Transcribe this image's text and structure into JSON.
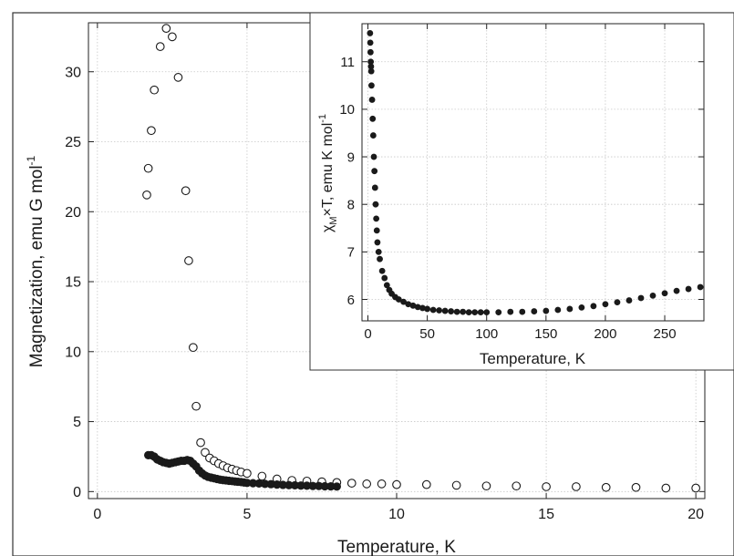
{
  "chart_data": [
    {
      "type": "scatter",
      "xlabel": "Temperature, K",
      "ylabel": "Magnetization, emu G mol",
      "ylabel_superscript": "-1",
      "xlim": [
        -0.3,
        20.3
      ],
      "ylim": [
        -0.5,
        33.5
      ],
      "xticks": [
        0,
        5,
        10,
        15,
        20
      ],
      "yticks": [
        0,
        5,
        10,
        15,
        20,
        25,
        30
      ],
      "grid": true,
      "legend": "none",
      "series": [
        {
          "marker": "open-circle",
          "points": [
            [
              1.65,
              21.2
            ],
            [
              1.7,
              23.1
            ],
            [
              1.8,
              25.8
            ],
            [
              1.9,
              28.7
            ],
            [
              2.1,
              31.8
            ],
            [
              2.3,
              33.1
            ],
            [
              2.5,
              32.5
            ],
            [
              2.7,
              29.6
            ],
            [
              2.95,
              21.5
            ],
            [
              3.05,
              16.5
            ],
            [
              3.2,
              10.3
            ],
            [
              3.3,
              6.1
            ],
            [
              3.45,
              3.5
            ],
            [
              3.6,
              2.8
            ],
            [
              3.75,
              2.4
            ],
            [
              3.9,
              2.2
            ],
            [
              4.05,
              2.0
            ],
            [
              4.2,
              1.85
            ],
            [
              4.35,
              1.7
            ],
            [
              4.5,
              1.6
            ],
            [
              4.65,
              1.5
            ],
            [
              4.8,
              1.4
            ],
            [
              5.0,
              1.3
            ],
            [
              5.5,
              1.1
            ],
            [
              6.0,
              0.9
            ],
            [
              6.5,
              0.8
            ],
            [
              7.0,
              0.75
            ],
            [
              7.5,
              0.7
            ],
            [
              8.0,
              0.65
            ],
            [
              8.5,
              0.6
            ],
            [
              9.0,
              0.55
            ],
            [
              9.5,
              0.55
            ],
            [
              10.0,
              0.5
            ],
            [
              11.0,
              0.5
            ],
            [
              12.0,
              0.45
            ],
            [
              13.0,
              0.4
            ],
            [
              14.0,
              0.4
            ],
            [
              15.0,
              0.35
            ],
            [
              16.0,
              0.35
            ],
            [
              17.0,
              0.3
            ],
            [
              18.0,
              0.3
            ],
            [
              19.0,
              0.25
            ],
            [
              20.0,
              0.25
            ]
          ]
        },
        {
          "marker": "filled-circle",
          "points": [
            [
              1.7,
              2.6
            ],
            [
              1.8,
              2.6
            ],
            [
              1.9,
              2.5
            ],
            [
              2.0,
              2.3
            ],
            [
              2.1,
              2.2
            ],
            [
              2.2,
              2.1
            ],
            [
              2.3,
              2.05
            ],
            [
              2.4,
              2.0
            ],
            [
              2.5,
              2.05
            ],
            [
              2.6,
              2.1
            ],
            [
              2.7,
              2.15
            ],
            [
              2.8,
              2.2
            ],
            [
              2.9,
              2.2
            ],
            [
              3.0,
              2.25
            ],
            [
              3.1,
              2.2
            ],
            [
              3.2,
              2.0
            ],
            [
              3.3,
              1.8
            ],
            [
              3.4,
              1.5
            ],
            [
              3.5,
              1.3
            ],
            [
              3.6,
              1.15
            ],
            [
              3.7,
              1.05
            ],
            [
              3.8,
              1.0
            ],
            [
              3.9,
              0.95
            ],
            [
              4.0,
              0.9
            ],
            [
              4.1,
              0.85
            ],
            [
              4.2,
              0.82
            ],
            [
              4.3,
              0.8
            ],
            [
              4.4,
              0.77
            ],
            [
              4.5,
              0.75
            ],
            [
              4.6,
              0.72
            ],
            [
              4.7,
              0.7
            ],
            [
              4.8,
              0.68
            ],
            [
              4.9,
              0.65
            ],
            [
              5.0,
              0.62
            ],
            [
              5.2,
              0.6
            ],
            [
              5.4,
              0.58
            ],
            [
              5.6,
              0.55
            ],
            [
              5.8,
              0.53
            ],
            [
              6.0,
              0.5
            ],
            [
              6.2,
              0.48
            ],
            [
              6.4,
              0.46
            ],
            [
              6.6,
              0.45
            ],
            [
              6.8,
              0.43
            ],
            [
              7.0,
              0.42
            ],
            [
              7.2,
              0.4
            ],
            [
              7.4,
              0.4
            ],
            [
              7.6,
              0.38
            ],
            [
              7.8,
              0.37
            ],
            [
              8.0,
              0.36
            ]
          ]
        }
      ]
    },
    {
      "type": "scatter",
      "xlabel": "Temperature, K",
      "ylabel_prefix": "χ",
      "ylabel_subscript": "M",
      "ylabel_mid": "×T, emu K mol",
      "ylabel_superscript": "-1",
      "xlim": [
        -5,
        283
      ],
      "ylim": [
        5.55,
        11.8
      ],
      "xticks": [
        0,
        50,
        100,
        150,
        200,
        250
      ],
      "yticks": [
        6,
        7,
        8,
        9,
        10,
        11
      ],
      "grid": true,
      "legend": "none",
      "series": [
        {
          "marker": "filled-circle",
          "points": [
            [
              1.8,
              11.6
            ],
            [
              2.0,
              11.4
            ],
            [
              2.2,
              11.2
            ],
            [
              2.4,
              11.0
            ],
            [
              2.6,
              10.9
            ],
            [
              2.8,
              10.8
            ],
            [
              3.0,
              10.5
            ],
            [
              3.5,
              10.2
            ],
            [
              4.0,
              9.8
            ],
            [
              4.5,
              9.45
            ],
            [
              5.0,
              9.0
            ],
            [
              5.5,
              8.7
            ],
            [
              6.0,
              8.35
            ],
            [
              6.5,
              8.0
            ],
            [
              7.0,
              7.7
            ],
            [
              7.5,
              7.45
            ],
            [
              8.0,
              7.2
            ],
            [
              9.0,
              7.0
            ],
            [
              10.0,
              6.85
            ],
            [
              12.0,
              6.6
            ],
            [
              14.0,
              6.45
            ],
            [
              16.0,
              6.3
            ],
            [
              18.0,
              6.2
            ],
            [
              20.0,
              6.12
            ],
            [
              23.0,
              6.05
            ],
            [
              26.0,
              6.0
            ],
            [
              30.0,
              5.95
            ],
            [
              34.0,
              5.9
            ],
            [
              38.0,
              5.87
            ],
            [
              42.0,
              5.84
            ],
            [
              46.0,
              5.82
            ],
            [
              50.0,
              5.8
            ],
            [
              55.0,
              5.78
            ],
            [
              60.0,
              5.77
            ],
            [
              65.0,
              5.76
            ],
            [
              70.0,
              5.75
            ],
            [
              75.0,
              5.74
            ],
            [
              80.0,
              5.74
            ],
            [
              85.0,
              5.73
            ],
            [
              90.0,
              5.73
            ],
            [
              95.0,
              5.73
            ],
            [
              100.0,
              5.73
            ],
            [
              110.0,
              5.73
            ],
            [
              120.0,
              5.74
            ],
            [
              130.0,
              5.74
            ],
            [
              140.0,
              5.75
            ],
            [
              150.0,
              5.76
            ],
            [
              160.0,
              5.78
            ],
            [
              170.0,
              5.8
            ],
            [
              180.0,
              5.83
            ],
            [
              190.0,
              5.86
            ],
            [
              200.0,
              5.9
            ],
            [
              210.0,
              5.94
            ],
            [
              220.0,
              5.98
            ],
            [
              230.0,
              6.03
            ],
            [
              240.0,
              6.08
            ],
            [
              250.0,
              6.13
            ],
            [
              260.0,
              6.18
            ],
            [
              270.0,
              6.22
            ],
            [
              280.0,
              6.26
            ]
          ]
        }
      ]
    }
  ]
}
